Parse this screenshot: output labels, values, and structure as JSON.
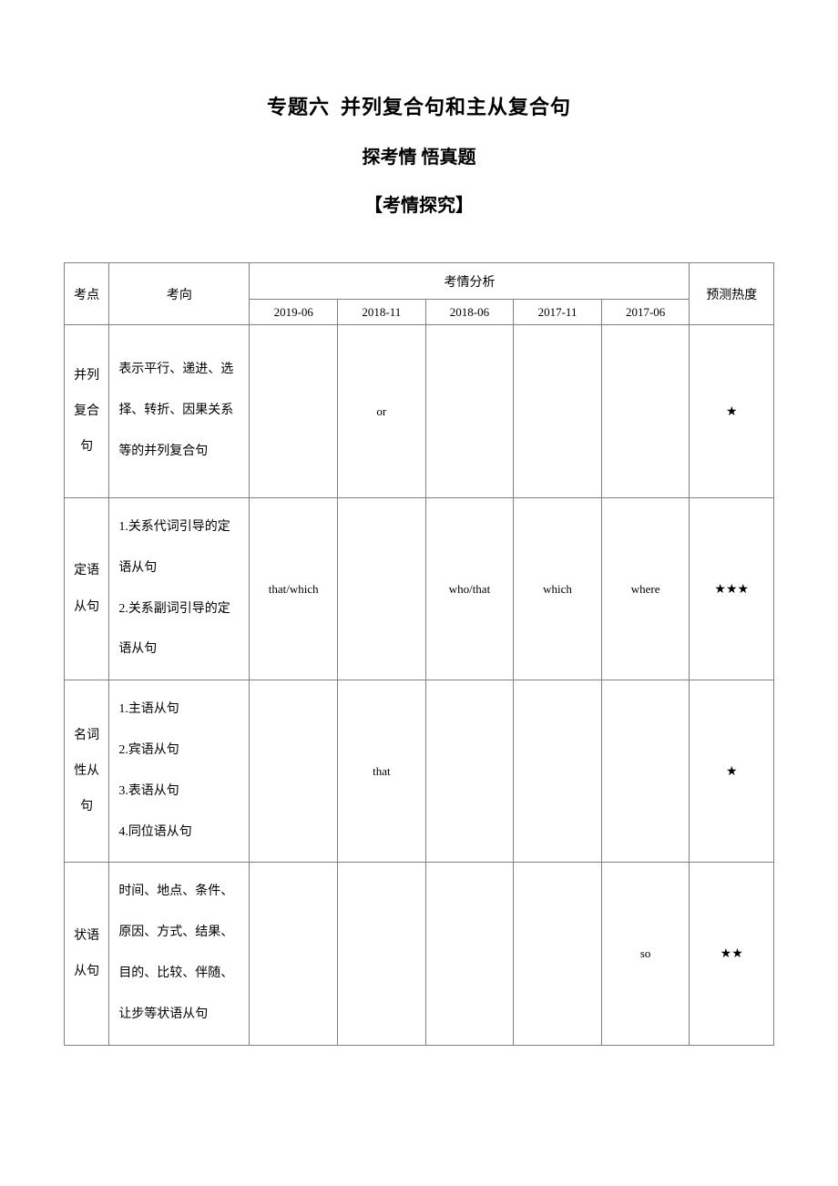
{
  "titles": {
    "main_prefix": "专题六",
    "main_suffix": "并列复合句和主从复合句",
    "sub1": "探考情 悟真题",
    "sub2": "【考情探究】"
  },
  "table": {
    "headers": {
      "kaodian": "考点",
      "kaoxiang": "考向",
      "analysis": "考情分析",
      "heat": "预测热度"
    },
    "periods": [
      "2019-06",
      "2018-11",
      "2018-06",
      "2017-11",
      "2017-06"
    ],
    "col_widths": {
      "kaodian": 48,
      "kaoxiang": 150,
      "data": 94,
      "heat": 90
    },
    "border_color": "#808080",
    "font_sizes": {
      "header": 14,
      "subheader": 13,
      "kaodian": 14,
      "kaoxiang": 14,
      "data": 13,
      "heat": 14
    },
    "rows": [
      {
        "kaodian": "并列复合句",
        "kaoxiang": "表示平行、递进、选择、转折、因果关系等的并列复合句",
        "data": [
          "",
          "or",
          "",
          "",
          ""
        ],
        "heat": "★"
      },
      {
        "kaodian": "定语从句",
        "kaoxiang": "1.关系代词引导的定语从句\n2.关系副词引导的定语从句",
        "data": [
          "that/which",
          "",
          "who/that",
          "which",
          "where"
        ],
        "heat": "★★★"
      },
      {
        "kaodian": "名词性从句",
        "kaoxiang": "1.主语从句\n2.宾语从句\n3.表语从句\n4.同位语从句",
        "data": [
          "",
          "that",
          "",
          "",
          ""
        ],
        "heat": "★"
      },
      {
        "kaodian": "状语从句",
        "kaoxiang": "时间、地点、条件、原因、方式、结果、目的、比较、伴随、让步等状语从句",
        "data": [
          "",
          "",
          "",
          "",
          "so"
        ],
        "heat": "★★"
      }
    ]
  }
}
